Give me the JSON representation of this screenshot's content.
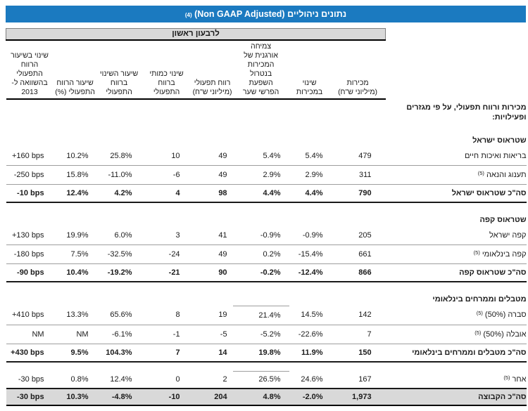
{
  "colors": {
    "title_bar": "#1b7ac0",
    "period_bar": "#d9d9d9",
    "row_line": "#9e9e9e",
    "heavy_line": "#1a1a1a",
    "grand_total_bg": "#d9d9d9"
  },
  "title": {
    "hebrew": "נתונים ניהוליים",
    "latin": "(Non GAAP Adjusted)",
    "footnote": "(4)"
  },
  "period_header": "לרבעון ראשון",
  "columns": [
    {
      "key": "sales",
      "label": "מכירות\n(מיליוני ש\"ח)"
    },
    {
      "key": "sales-change",
      "label": "שינוי במכירות"
    },
    {
      "key": "organic-growth",
      "label": "צמיחה\nאורגנית של\nהמכירות\nבנטרול\nהשפעת\nהפרשי שער"
    },
    {
      "key": "operating-profit",
      "label": "רווח תפעולי\n(מיליוני ש\"ח)"
    },
    {
      "key": "quantity-change",
      "label": "שינוי כמותי\nברווח\nהתפעולי"
    },
    {
      "key": "change-rate",
      "label": "שיעור השינוי\nברווח\nהתפעולי"
    },
    {
      "key": "profit-rate",
      "label": "שיעור הרווח\nהתפעולי (%)"
    },
    {
      "key": "bps-change",
      "label": "שינוי בשיעור\nהרווח\nהתפעולי\nבהשוואה ל-\n2013"
    }
  ],
  "rows": [
    {
      "type": "caption",
      "label": "מכירות ורווח תפעולי, על פי מגזרים\nופעילויות:"
    },
    {
      "type": "section",
      "first": true,
      "label": "שטראוס ישראל"
    },
    {
      "type": "data",
      "label": "בריאות ואיכות חיים",
      "values": [
        "479",
        "5.4%",
        "5.4%",
        "49",
        "10",
        "25.8%",
        "10.2%",
        "+160 bps"
      ]
    },
    {
      "type": "data",
      "label": "תענוג והנאה",
      "fn": "(5)",
      "values": [
        "311",
        "2.9%",
        "2.9%",
        "49",
        "-6",
        "-11.0%",
        "15.8%",
        "-250 bps"
      ]
    },
    {
      "type": "total",
      "label": "סה\"כ שטראוס ישראל",
      "values": [
        "790",
        "4.4%",
        "4.4%",
        "98",
        "4",
        "4.2%",
        "12.4%",
        "-10 bps"
      ]
    },
    {
      "type": "gap"
    },
    {
      "type": "section",
      "label": "שטראוס קפה"
    },
    {
      "type": "data",
      "label": "קפה ישראל",
      "values": [
        "205",
        "-0.9%",
        "-0.9%",
        "41",
        "3",
        "6.0%",
        "19.9%",
        "+130 bps"
      ]
    },
    {
      "type": "data",
      "label": "קפה בינלאומי",
      "fn": "(5)",
      "values": [
        "661",
        "-15.4%",
        "0.2%",
        "49",
        "-24",
        "-32.5%",
        "7.5%",
        "-180 bps"
      ]
    },
    {
      "type": "total",
      "label": "סה\"כ שטראוס קפה",
      "values": [
        "866",
        "-12.4%",
        "-0.2%",
        "90",
        "-21",
        "-19.2%",
        "10.4%",
        "-90 bps"
      ]
    },
    {
      "type": "gap"
    },
    {
      "type": "section",
      "label": "מטבלים וממרחים בינלאומי",
      "frag": true
    },
    {
      "type": "data",
      "label": "סברה (50%)",
      "fn": "(5)",
      "values": [
        "142",
        "14.5%",
        "21.4%",
        "19",
        "8",
        "65.6%",
        "13.3%",
        "+410 bps"
      ]
    },
    {
      "type": "data",
      "label": "אובלה (50%)",
      "fn": "(5)",
      "values": [
        "7",
        "-22.6%",
        "-5.2%",
        "-5",
        "-1",
        "-6.1%",
        "NM",
        "NM"
      ]
    },
    {
      "type": "total",
      "label": "סה\"כ מטבלים וממרחים בינלאומי",
      "values": [
        "150",
        "11.9%",
        "19.8%",
        "14",
        "7",
        "104.3%",
        "9.5%",
        "+430 bps"
      ]
    },
    {
      "type": "gap",
      "frag": true
    },
    {
      "type": "other",
      "label": "אחר",
      "fn": "(5)",
      "values": [
        "167",
        "24.6%",
        "26.5%",
        "2",
        "0",
        "12.4%",
        "0.8%",
        "-30 bps"
      ]
    },
    {
      "type": "grand",
      "label": "סה\"כ הקבוצה",
      "values": [
        "1,973",
        "-2.0%",
        "4.8%",
        "204",
        "-10",
        "-4.8%",
        "10.3%",
        "-30 bps"
      ]
    }
  ]
}
